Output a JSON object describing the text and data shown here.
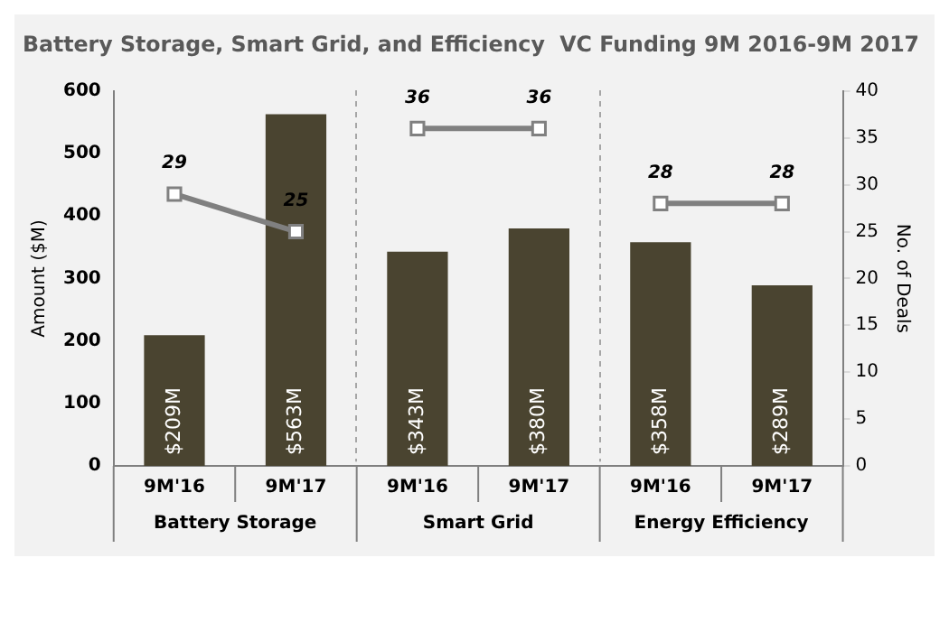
{
  "chart_data": {
    "type": "bar",
    "title": "Battery Storage, Smart Grid, and Efficiency  VC Funding 9M 2016-9M 2017",
    "categories": [
      "9M'16",
      "9M'17",
      "9M'16",
      "9M'17",
      "9M'16",
      "9M'17"
    ],
    "annotations": [
      "Battery Storage",
      "Smart Grid",
      "Energy Efficiency"
    ],
    "ylabel": "Amount ($M)",
    "y2label": "No. of Deals",
    "ylim": [
      0,
      600
    ],
    "yticks": [
      0,
      100,
      200,
      300,
      400,
      500,
      600
    ],
    "y2lim": [
      0,
      40
    ],
    "y2ticks": [
      0,
      5,
      10,
      15,
      20,
      25,
      30,
      35,
      40
    ],
    "grid": false,
    "legend": false,
    "marker": "square",
    "series": [
      {
        "color": "#4a4430",
        "values": [
          209,
          563,
          343,
          380,
          358,
          289
        ],
        "value_labels": [
          "$209M",
          "$563M",
          "$343M",
          "$380M",
          "$358M",
          "$289M"
        ]
      },
      {
        "type": "line",
        "axis": "y2",
        "color": "#808080",
        "values": [
          29,
          25,
          null,
          null,
          null,
          null
        ],
        "value_labels": [
          "29",
          "25",
          null,
          null,
          null,
          null
        ]
      },
      {
        "type": "line",
        "axis": "y2",
        "color": "#808080",
        "values": [
          null,
          null,
          36,
          36,
          null,
          null
        ],
        "value_labels": [
          null,
          null,
          "36",
          "36",
          null,
          null
        ]
      },
      {
        "type": "line",
        "axis": "y2",
        "color": "#808080",
        "values": [
          null,
          null,
          null,
          null,
          28,
          28
        ],
        "value_labels": [
          null,
          null,
          null,
          null,
          "28",
          "28"
        ]
      }
    ]
  }
}
